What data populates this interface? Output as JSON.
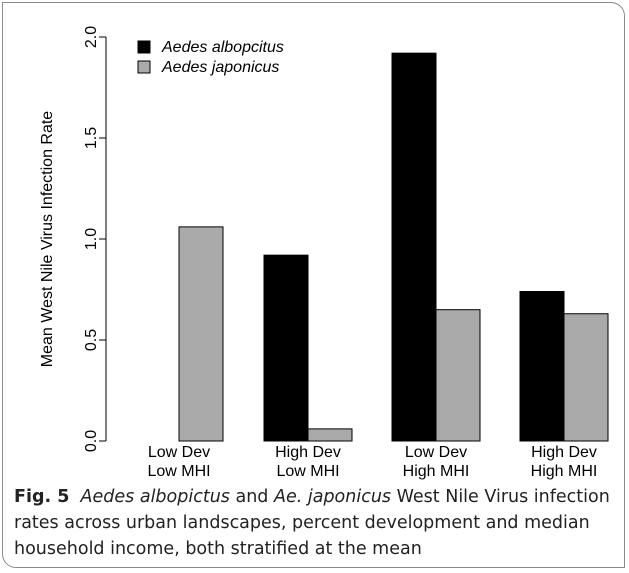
{
  "chart_data": {
    "type": "bar",
    "categories": [
      [
        "Low Dev",
        "Low MHI"
      ],
      [
        "High Dev",
        "Low MHI"
      ],
      [
        "Low Dev",
        "High MHI"
      ],
      [
        "High Dev",
        "High MHI"
      ]
    ],
    "series": [
      {
        "name": "Aedes albopcitus",
        "color": "#000000",
        "values": [
          0.0,
          0.92,
          1.92,
          0.74
        ]
      },
      {
        "name": "Aedes japonicus",
        "color": "#aaaaaa",
        "values": [
          1.06,
          0.06,
          0.65,
          0.63
        ]
      }
    ],
    "ylabel": "Mean West Nile Virus Infection Rate",
    "yticks": [
      "0.0",
      "0.5",
      "1.0",
      "1.5",
      "2.0"
    ],
    "ylim": [
      0,
      2.0
    ],
    "legend_position": "top-left",
    "grid": false
  },
  "caption": {
    "fig_label": "Fig. 5",
    "species1": "Aedes albopictus",
    "conj": "and",
    "species2": "Ae. japonicus",
    "text": "West Nile Virus infection rates across urban landscapes, percent development and median household income, both stratified at the mean"
  }
}
